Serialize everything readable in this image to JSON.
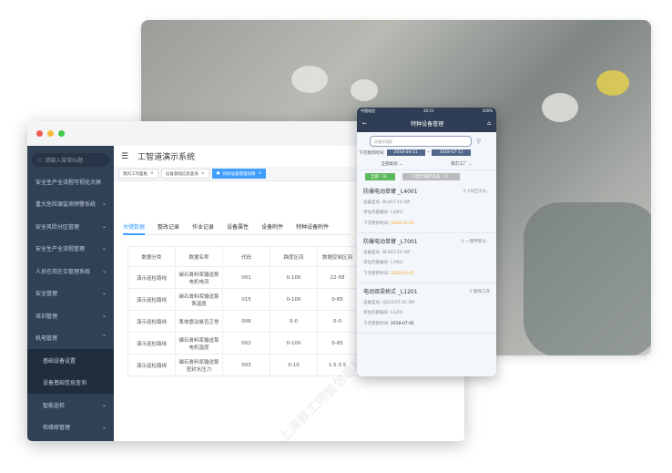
{
  "desktop": {
    "search_placeholder": "请输入菜单标题",
    "menu": [
      {
        "label": "安全生产全流程可视化大屏",
        "chev": ""
      },
      {
        "label": "重大危险源监测预警系统",
        "chev": "⌄"
      },
      {
        "label": "安全风险分区管理",
        "chev": "⌄"
      },
      {
        "label": "安全生产全流程管理",
        "chev": "⌄"
      },
      {
        "label": "人员在岗在位管理系统",
        "chev": "⌄"
      },
      {
        "label": "安全管理",
        "chev": "⌄"
      },
      {
        "label": "培训管理",
        "chev": "⌄"
      },
      {
        "label": "机电管理",
        "chev": "⌃"
      }
    ],
    "submenu": [
      "基础设备设置",
      "设备基础信息查询"
    ],
    "submenu2": [
      {
        "label": "智能巡检",
        "chev": "⌄"
      },
      {
        "label": "检维修管理",
        "chev": "⌄"
      }
    ],
    "title": "工智道演示系统",
    "tags": [
      "我的工作面板",
      "设备基础信息查询",
      "同体设备管理详情"
    ],
    "tabs": [
      "关键数据",
      "整改记录",
      "作业记录",
      "设备属性",
      "设备附件",
      "特种设备附件"
    ],
    "table": {
      "headers": [
        "数据分类",
        "数据名称",
        "代码",
        "跨度区间",
        "数据控制区间"
      ],
      "rows": [
        [
          "演示巡检路线",
          "碳石膏料浆输送泵电机电流",
          "001",
          "0-100",
          "22-58"
        ],
        [
          "演示巡检路线",
          "碳石膏料浆输送泵泵温度",
          "015",
          "0-100",
          "0-65"
        ],
        [
          "演示巡检路线",
          "泵体震动悬否正常",
          "006",
          "0-0",
          "0-0"
        ],
        [
          "演示巡检路线",
          "磷石膏料浆输送泵电机温度",
          "002",
          "0-100",
          "0-85"
        ],
        [
          "演示巡检路线",
          "磷石膏料浆输送泵密封水压力",
          "003",
          "0-10",
          "1.5-3.5"
        ]
      ]
    }
  },
  "mobile": {
    "status": {
      "carrier": "中国电信",
      "time": "20:21",
      "battery": "100%"
    },
    "title": "特种设备管理",
    "search_placeholder": "关键字搜索",
    "date_label": "下次更新时间:",
    "date_from": "2018-04-11",
    "date_to": "2018-07-11",
    "sep": "~",
    "filter_type": "全部类别",
    "filter_factory": "南京工厂",
    "btn_all": "全部（3）",
    "btn_only": "只显示临检设备（2）",
    "cards": [
      {
        "name": "防爆电动单臂 _L4001",
        "loc": "CD区冷分...",
        "model_label": "设备型号:",
        "model": "BLDST-14.5M",
        "code_label": "单位内部编号:",
        "code": "L4001",
        "next_label": "下次更新时间:",
        "next": "2018-05-01",
        "overdue": true
      },
      {
        "name": "防爆电动单臂 _L7001",
        "loc": "一期甲醛仓...",
        "model_label": "设备型号:",
        "model": "BLDST-22.5M",
        "code_label": "单位内部编号:",
        "code": "L7001",
        "next_label": "下次更新时间:",
        "next": "2018-05-01",
        "overdue": true
      },
      {
        "name": "电动双梁桥式 _L1201",
        "loc": "磨煤工序",
        "model_label": "设备型号:",
        "model": "QD32/5T-25.5M",
        "code_label": "单位内部编号:",
        "code": "L1201",
        "next_label": "下次更新时间:",
        "next": "2018-07-01",
        "overdue": false
      }
    ]
  },
  "watermark": "上海昇工同智信息科技有限公司",
  "colors": {
    "sidebar": "#304156",
    "accent": "#409eff",
    "phone_nav": "#2f3e54",
    "overdue": "#f5a623",
    "green": "#5cb85c"
  }
}
